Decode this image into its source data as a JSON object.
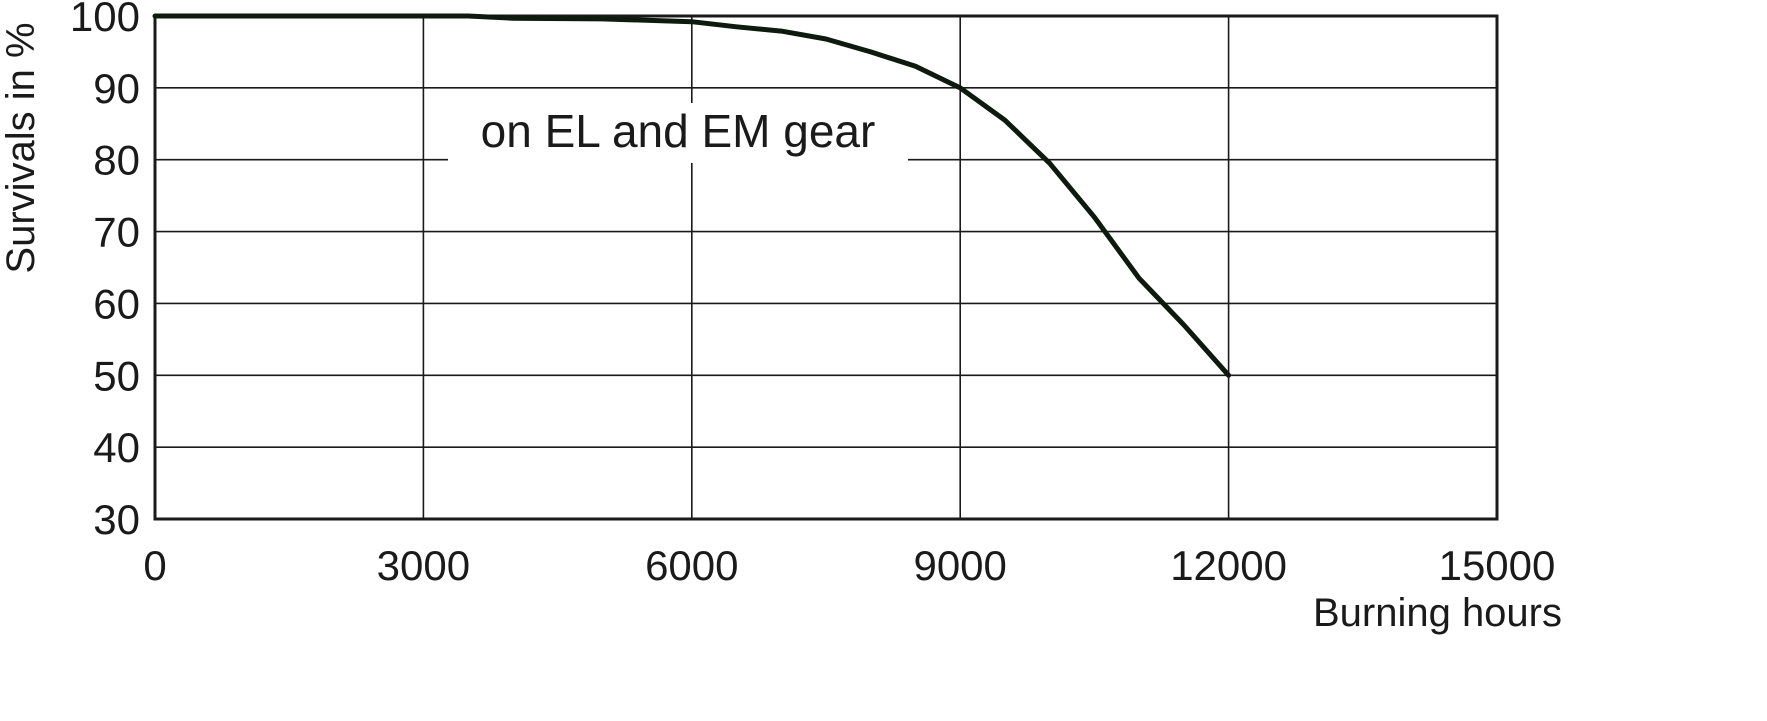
{
  "chart_data": {
    "type": "line",
    "title": "",
    "xlabel": "Burning hours",
    "ylabel": "Survivals in %",
    "xlim": [
      0,
      15000
    ],
    "ylim": [
      30,
      100
    ],
    "x_ticks": [
      0,
      3000,
      6000,
      9000,
      12000,
      15000
    ],
    "y_ticks": [
      30,
      40,
      50,
      60,
      70,
      80,
      90,
      100
    ],
    "grid": true,
    "annotation": "on EL and EM gear",
    "series": [
      {
        "color": "#0d1a0d",
        "x": [
          0,
          3500,
          4000,
          5000,
          6000,
          6500,
          7000,
          7500,
          8000,
          8500,
          9000,
          9500,
          10000,
          10500,
          11000,
          11500,
          12000
        ],
        "y": [
          100,
          100,
          99.7,
          99.6,
          99.2,
          98.5,
          97.9,
          96.8,
          95,
          93,
          90,
          85.5,
          79.5,
          72,
          63.5,
          57,
          50
        ]
      }
    ]
  }
}
